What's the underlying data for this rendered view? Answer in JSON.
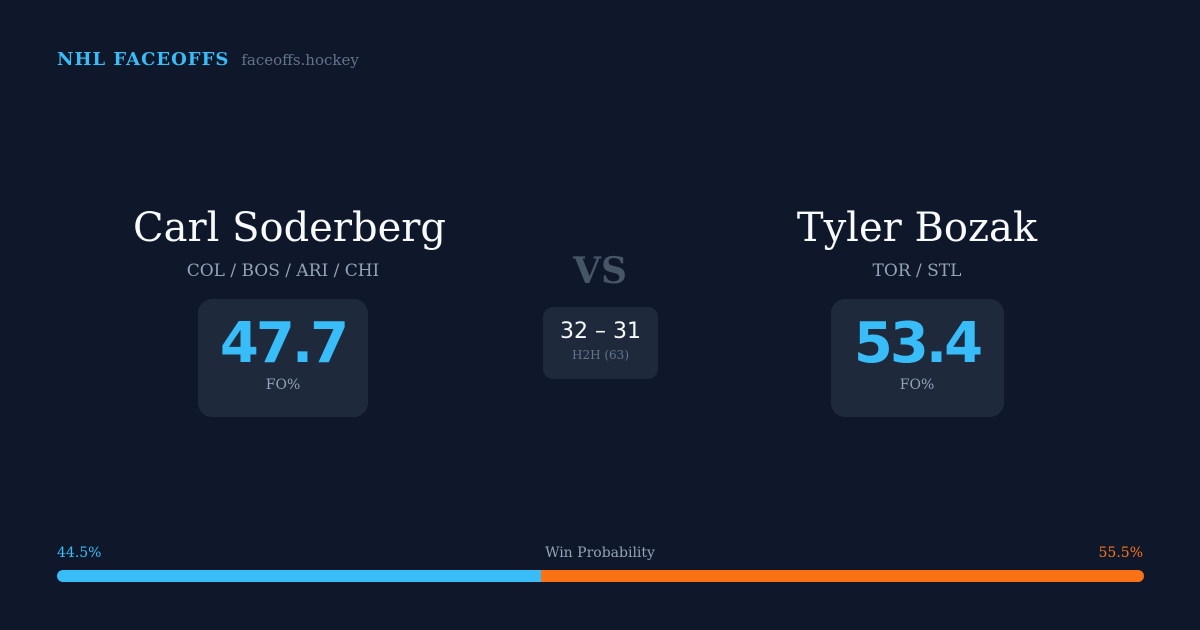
{
  "brand": {
    "title": "NHL FACEOFFS",
    "site": "faceoffs.hockey"
  },
  "left": {
    "name": "Carl Soderberg",
    "teams": "COL / BOS / ARI / CHI",
    "fo_pct": "47.7",
    "fo_label": "FO%"
  },
  "right": {
    "name": "Tyler Bozak",
    "teams": "TOR / STL",
    "fo_pct": "53.4",
    "fo_label": "FO%"
  },
  "vs": "VS",
  "h2h": {
    "score": "32 – 31",
    "label": "H2H (63)"
  },
  "win_prob": {
    "label": "Win Probability",
    "left": "44.5%",
    "right": "55.5%",
    "left_value": 44.5,
    "left_color": "#38bdf8",
    "right_color": "#f97316"
  }
}
